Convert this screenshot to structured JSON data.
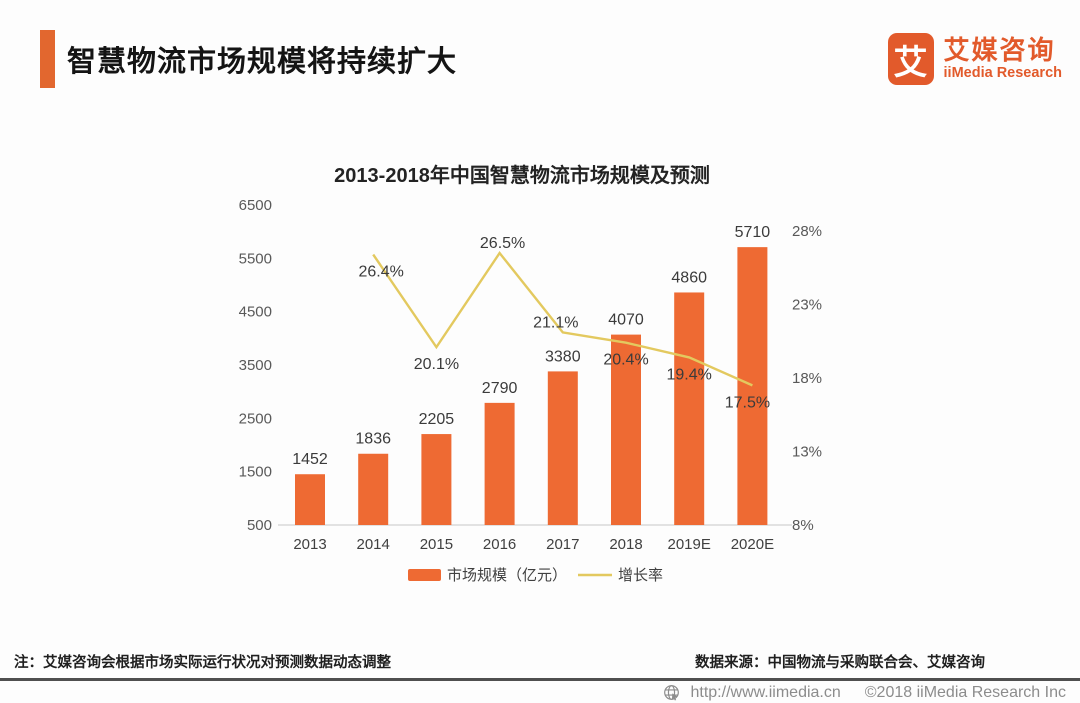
{
  "header": {
    "title": "智慧物流市场规模将持续扩大",
    "logo": {
      "glyph": "艾",
      "name_cn": "艾媒咨询",
      "name_en": "iiMedia Research"
    }
  },
  "chart_data": {
    "type": "combo",
    "title": "2013-2018年中国智慧物流市场规模及预测",
    "categories": [
      "2013",
      "2014",
      "2015",
      "2016",
      "2017",
      "2018",
      "2019E",
      "2020E"
    ],
    "series": [
      {
        "name": "市场规模（亿元）",
        "type": "bar",
        "axis": "left",
        "color": "#ee6a33",
        "values": [
          1452,
          1836,
          2205,
          2790,
          3380,
          4070,
          4860,
          5710
        ]
      },
      {
        "name": "增长率",
        "type": "line",
        "axis": "right",
        "color": "#e3c95f",
        "x_start_index": 1,
        "values": [
          26.4,
          20.1,
          26.5,
          21.1,
          20.4,
          19.4,
          17.5
        ],
        "label_positions": [
          "below",
          "below",
          "above",
          "above",
          "below",
          "below",
          "below"
        ],
        "label_dx": [
          8,
          0,
          3,
          -7,
          0,
          0,
          -5
        ]
      }
    ],
    "left_axis": {
      "min": 500,
      "max": 6500,
      "ticks": [
        500,
        1500,
        2500,
        3500,
        4500,
        5500,
        6500
      ]
    },
    "right_axis": {
      "min": 8,
      "max": 28,
      "tick_values": [
        8,
        13,
        18,
        23,
        28
      ],
      "ticks": [
        "8%",
        "13%",
        "18%",
        "23%",
        "28%"
      ]
    },
    "grid": false,
    "legend_position": "bottom"
  },
  "legend": {
    "items": [
      {
        "label": "市场规模（亿元）",
        "swatch": "bar",
        "color": "#ee6a33"
      },
      {
        "label": "增长率",
        "swatch": "line",
        "color": "#e3c95f"
      }
    ]
  },
  "notes": {
    "left": "注：艾媒咨询会根据市场实际运行状况对预测数据动态调整",
    "right": "数据来源：中国物流与采购联合会、艾媒咨询"
  },
  "footer": {
    "url": "http://www.iimedia.cn",
    "copyright": "©2018  iiMedia Research Inc"
  }
}
